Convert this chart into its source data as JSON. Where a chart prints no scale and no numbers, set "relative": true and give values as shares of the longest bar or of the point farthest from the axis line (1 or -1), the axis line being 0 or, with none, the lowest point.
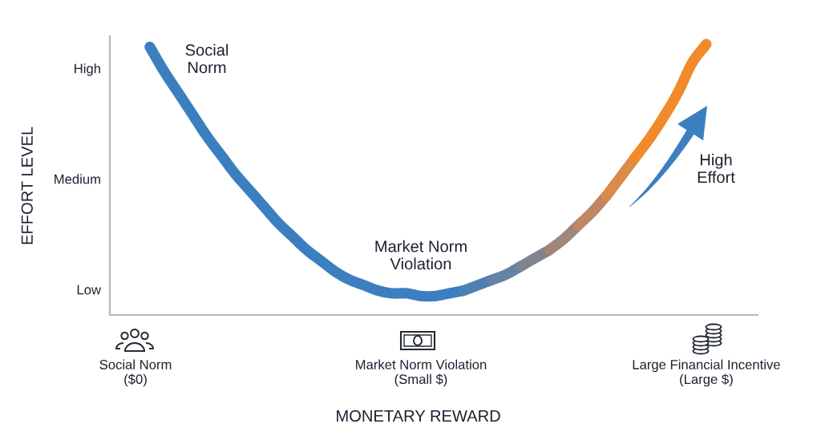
{
  "chart_data": {
    "type": "line",
    "relative": true,
    "xlabel": "MONETARY REWARD",
    "ylabel": "EFFORT LEVEL",
    "categories": [
      "Social Norm\n($0)",
      null,
      null,
      null,
      null,
      null,
      null,
      null,
      null,
      null,
      null,
      null,
      null,
      null,
      null,
      null,
      null,
      null,
      null,
      null,
      "Market Norm Violation\n(Small $)",
      null,
      null,
      null,
      null,
      null,
      null,
      null,
      null,
      null,
      null,
      null,
      null,
      null,
      null,
      null,
      null,
      null,
      null,
      null,
      "Large Financial Incentive\n(Large $)"
    ],
    "series": [
      {
        "color": "#3b7fc0",
        "values": [
          null,
          0.99,
          0.9,
          0.82,
          0.74,
          0.66,
          0.59,
          0.52,
          0.46,
          0.4,
          0.34,
          0.29,
          0.24,
          0.2,
          0.16,
          0.13,
          0.11,
          0.09,
          0.08,
          0.08,
          0.07,
          0.07,
          0.08,
          0.09,
          null,
          null,
          null,
          null,
          null,
          null,
          null,
          null,
          null,
          null,
          null,
          null,
          null,
          null,
          null,
          null,
          null
        ]
      },
      {
        "color": "#4f80b4",
        "values": [
          null,
          null,
          null,
          null,
          null,
          null,
          null,
          null,
          null,
          null,
          null,
          null,
          null,
          null,
          null,
          null,
          null,
          null,
          null,
          null,
          null,
          null,
          null,
          0.09,
          0.11,
          0.13,
          null,
          null,
          null,
          null,
          null,
          null,
          null,
          null,
          null,
          null,
          null,
          null,
          null,
          null,
          null
        ]
      },
      {
        "color": "#6683a5",
        "values": [
          null,
          null,
          null,
          null,
          null,
          null,
          null,
          null,
          null,
          null,
          null,
          null,
          null,
          null,
          null,
          null,
          null,
          null,
          null,
          null,
          null,
          null,
          null,
          null,
          null,
          0.13,
          0.15,
          0.18,
          null,
          null,
          null,
          null,
          null,
          null,
          null,
          null,
          null,
          null,
          null,
          null,
          null
        ]
      },
      {
        "color": "#80848f",
        "values": [
          null,
          null,
          null,
          null,
          null,
          null,
          null,
          null,
          null,
          null,
          null,
          null,
          null,
          null,
          null,
          null,
          null,
          null,
          null,
          null,
          null,
          null,
          null,
          null,
          null,
          null,
          null,
          0.18,
          0.21,
          0.24,
          null,
          null,
          null,
          null,
          null,
          null,
          null,
          null,
          null,
          null,
          null
        ]
      },
      {
        "color": "#a08579",
        "values": [
          null,
          null,
          null,
          null,
          null,
          null,
          null,
          null,
          null,
          null,
          null,
          null,
          null,
          null,
          null,
          null,
          null,
          null,
          null,
          null,
          null,
          null,
          null,
          null,
          null,
          null,
          null,
          null,
          null,
          0.24,
          0.28,
          0.33,
          null,
          null,
          null,
          null,
          null,
          null,
          null,
          null,
          null
        ]
      },
      {
        "color": "#bf8764",
        "values": [
          null,
          null,
          null,
          null,
          null,
          null,
          null,
          null,
          null,
          null,
          null,
          null,
          null,
          null,
          null,
          null,
          null,
          null,
          null,
          null,
          null,
          null,
          null,
          null,
          null,
          null,
          null,
          null,
          null,
          null,
          null,
          0.33,
          0.38,
          0.44,
          null,
          null,
          null,
          null,
          null,
          null,
          null
        ]
      },
      {
        "color": "#da8a4a",
        "values": [
          null,
          null,
          null,
          null,
          null,
          null,
          null,
          null,
          null,
          null,
          null,
          null,
          null,
          null,
          null,
          null,
          null,
          null,
          null,
          null,
          null,
          null,
          null,
          null,
          null,
          null,
          null,
          null,
          null,
          null,
          null,
          null,
          null,
          0.44,
          0.51,
          0.58,
          null,
          null,
          null,
          null,
          null
        ]
      },
      {
        "color": "#f28a2c",
        "values": [
          null,
          null,
          null,
          null,
          null,
          null,
          null,
          null,
          null,
          null,
          null,
          null,
          null,
          null,
          null,
          null,
          null,
          null,
          null,
          null,
          null,
          null,
          null,
          null,
          null,
          null,
          null,
          null,
          null,
          null,
          null,
          null,
          null,
          null,
          null,
          0.58,
          0.65,
          0.73,
          0.82,
          0.93,
          1.0
        ]
      }
    ],
    "grid": false,
    "marker": "none",
    "annotations": [
      "Social\nNorm",
      "Market Norm\nViolation",
      "High\nEffort",
      "High",
      "Medium",
      "Low"
    ]
  }
}
